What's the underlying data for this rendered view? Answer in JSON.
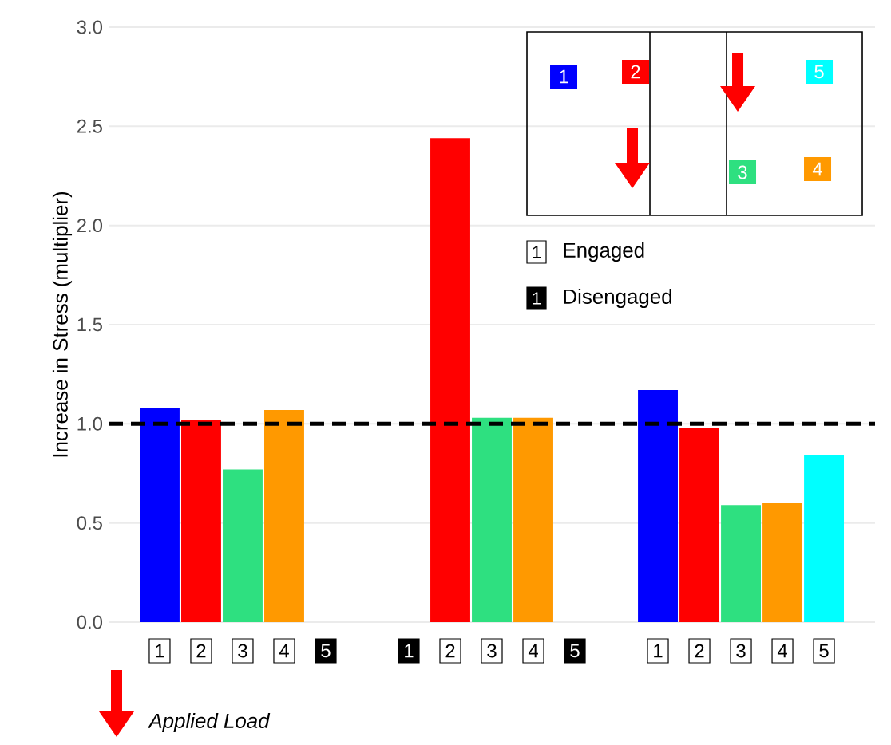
{
  "chart_data": {
    "type": "bar",
    "ylabel": "Increase in Stress (multiplier)",
    "categories": [
      "1",
      "2",
      "3",
      "4",
      "5",
      null,
      "1",
      "2",
      "3",
      "4",
      "5",
      null,
      "1",
      "2",
      "3",
      "4",
      "5"
    ],
    "values": [
      1.08,
      1.02,
      0.77,
      1.07,
      null,
      null,
      null,
      2.44,
      1.03,
      1.03,
      null,
      null,
      1.17,
      0.98,
      0.59,
      0.6,
      0.84
    ],
    "colors": [
      "#0000ff",
      "#ff0000",
      "#2ee080",
      "#ff9900",
      null,
      null,
      null,
      "#ff0000",
      "#2ee080",
      "#ff9900",
      null,
      null,
      "#0000ff",
      "#ff0000",
      "#2ee080",
      "#ff9900",
      "#00ffff"
    ],
    "ylim": [
      0,
      3
    ],
    "yticks": [
      {
        "value": 0,
        "label": "0.0"
      },
      {
        "value": 0.5,
        "label": "0.5"
      },
      {
        "value": 1,
        "label": "1.0"
      },
      {
        "value": 1.5,
        "label": "1.5"
      },
      {
        "value": 2,
        "label": "2.0"
      },
      {
        "value": 2.5,
        "label": "2.5"
      },
      {
        "value": 3,
        "label": "3.0"
      }
    ],
    "grid": "y",
    "ref_lines": [
      {
        "axis": "y",
        "value": 1,
        "color": "#000000",
        "line_style": "dashed"
      }
    ],
    "annotations": [
      "Engaged",
      "Disengaged",
      "Applied Load"
    ]
  }
}
